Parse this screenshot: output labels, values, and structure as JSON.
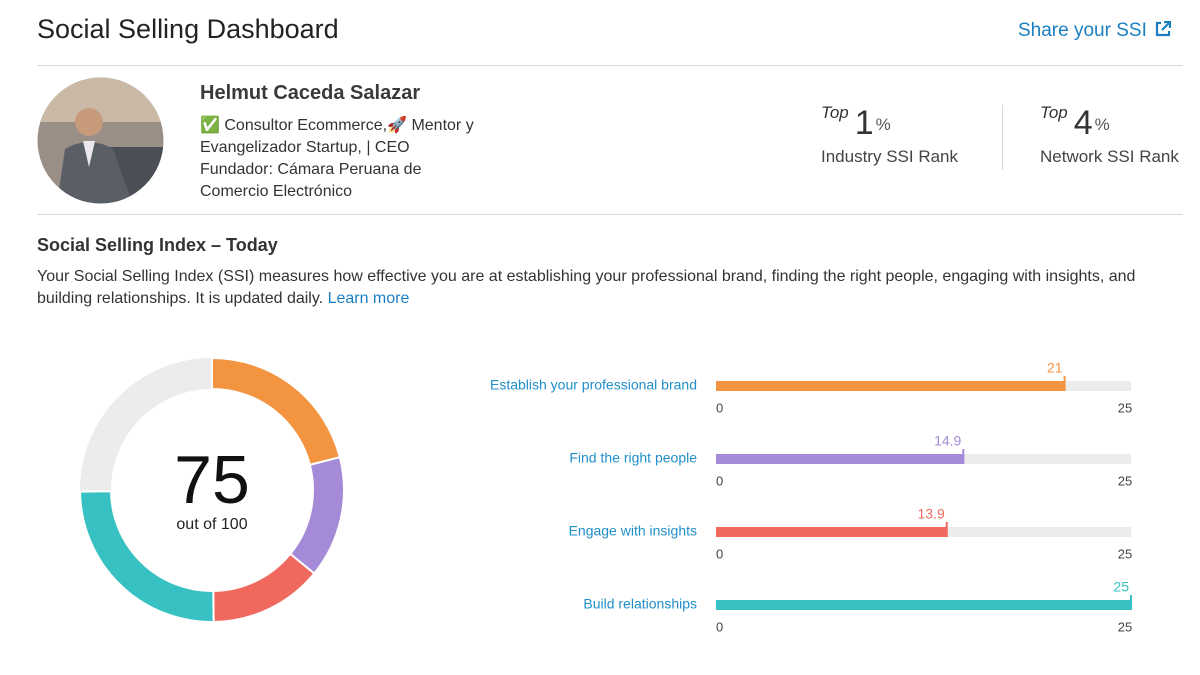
{
  "header": {
    "title": "Social Selling Dashboard",
    "share_link": "Share your SSI"
  },
  "profile": {
    "name": "Helmut Caceda Salazar",
    "headline": [
      "✅ Consultor Ecommerce,🚀 Mentor y",
      "Evangelizador Startup, | CEO",
      "Fundador: Cámara Peruana de",
      "Comercio Electrónico"
    ]
  },
  "ranks": [
    {
      "prefix": "Top",
      "value": 1,
      "unit": "%",
      "label": "Industry SSI Rank"
    },
    {
      "prefix": "Top",
      "value": 4,
      "unit": "%",
      "label": "Network SSI Rank"
    }
  ],
  "ssi": {
    "title": "Social Selling Index – Today",
    "description": "Your Social Selling Index (SSI) measures how effective you are at establishing your professional brand, finding the right people, engaging with insights, and building relationships. It is updated daily.",
    "learn_more": "Learn more"
  },
  "chart_data": {
    "type": "ssi_breakdown",
    "categories": [
      "Establish your professional brand",
      "Find the right people",
      "Engage with insights",
      "Build relationships"
    ],
    "values": [
      21,
      14.9,
      13.9,
      25
    ],
    "colors": [
      "#f39440",
      "#a58ad8",
      "#f0695f",
      "#38c1c3"
    ],
    "xlim": [
      0,
      25
    ],
    "xticks": [
      0,
      25
    ],
    "score": 75,
    "score_caption": "out of",
    "donut_max": 100
  }
}
